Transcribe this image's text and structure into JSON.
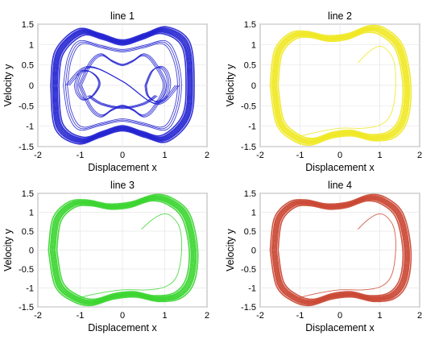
{
  "chart_data": [
    {
      "type": "line",
      "title": "line 1",
      "xlabel": "Displacement x",
      "ylabel": "Velocity y",
      "xlim": [
        -2,
        2
      ],
      "ylim": [
        -1.5,
        1.5
      ],
      "xticks": [
        "-2",
        "-1",
        "0",
        "1",
        "2"
      ],
      "yticks": [
        "-1.5",
        "-1",
        "-0.5",
        "0",
        "0.5",
        "1",
        "1.5"
      ],
      "grid": true,
      "color": "#1f1fd0",
      "series": [
        {
          "x": [
            -1.6,
            -1.5,
            -1.0,
            -0.5,
            0.0,
            0.5,
            1.0,
            1.5,
            1.6,
            1.5,
            1.0,
            0.5,
            0.0,
            -0.5,
            -1.0,
            -1.5,
            -1.6
          ],
          "y": [
            0.0,
            0.8,
            1.3,
            1.2,
            1.05,
            1.2,
            1.35,
            1.0,
            0.0,
            -0.8,
            -1.3,
            -1.2,
            -1.05,
            -1.2,
            -1.35,
            -1.0,
            0.0
          ]
        },
        {
          "x": [
            -1.35,
            -1.25,
            -1.0,
            -0.5,
            0.0,
            0.5,
            1.0,
            1.25,
            1.35,
            1.25,
            1.0,
            0.5,
            0.0,
            -0.5,
            -1.0,
            -1.25,
            -1.35
          ],
          "y": [
            0.0,
            0.65,
            1.05,
            0.95,
            0.85,
            0.95,
            1.05,
            0.65,
            0.0,
            -0.65,
            -1.05,
            -0.95,
            -0.85,
            -0.95,
            -1.05,
            -0.65,
            0.0
          ]
        },
        {
          "x": [
            -1.0,
            -0.75,
            -0.5,
            -0.25,
            0.0,
            0.25,
            0.5,
            0.75,
            1.0,
            0.75,
            0.5,
            0.25,
            0.0,
            -0.25,
            -0.5,
            -0.75,
            -1.0
          ],
          "y": [
            0.0,
            0.55,
            0.75,
            0.6,
            0.5,
            0.6,
            0.75,
            0.55,
            0.0,
            -0.55,
            -0.75,
            -0.6,
            -0.5,
            -0.6,
            -0.75,
            -0.55,
            0.0
          ]
        },
        {
          "x": [
            -1.1,
            -1.0,
            -0.8,
            -0.6,
            -0.55,
            -0.7,
            -0.9,
            -1.05,
            -1.1
          ],
          "y": [
            0.0,
            0.3,
            0.35,
            0.2,
            0.0,
            -0.25,
            -0.35,
            -0.2,
            0.0
          ]
        },
        {
          "x": [
            0.55,
            0.7,
            0.9,
            1.05,
            1.1,
            1.0,
            0.8,
            0.6,
            0.55
          ],
          "y": [
            0.0,
            0.35,
            0.45,
            0.3,
            0.0,
            -0.3,
            -0.4,
            -0.25,
            0.0
          ]
        },
        {
          "x": [
            -0.8,
            -0.5,
            0.0,
            0.5,
            0.8
          ],
          "y": [
            -0.25,
            -0.45,
            -0.55,
            -0.45,
            -0.25
          ]
        },
        {
          "x": [
            -1.3,
            -0.8,
            0.0,
            0.8,
            1.3
          ],
          "y": [
            0.0,
            0.45,
            0.1,
            -0.45,
            0.0
          ]
        }
      ]
    },
    {
      "type": "line",
      "title": "line 2",
      "xlabel": "Displacement x",
      "ylabel": "Velocity y",
      "xlim": [
        -2,
        2
      ],
      "ylim": [
        -1.5,
        1.5
      ],
      "xticks": [
        "-2",
        "-1",
        "0",
        "1",
        "2"
      ],
      "yticks": [
        "-1.5",
        "-1",
        "-0.5",
        "0",
        "0.5",
        "1",
        "1.5"
      ],
      "grid": true,
      "color": "#f0e81e",
      "series": [
        {
          "x": [
            -1.65,
            -1.55,
            -1.2,
            -0.8,
            -0.3,
            0.2,
            0.7,
            1.1,
            1.5,
            1.68,
            1.6,
            1.3,
            0.8,
            0.3,
            -0.2,
            -0.7,
            -1.1,
            -1.5,
            -1.65
          ],
          "y": [
            0.0,
            0.8,
            1.2,
            1.25,
            1.15,
            1.2,
            1.38,
            1.3,
            0.9,
            0.0,
            -0.8,
            -1.2,
            -1.28,
            -1.17,
            -1.22,
            -1.38,
            -1.28,
            -0.9,
            0.0
          ]
        },
        {
          "x": [
            0.45,
            0.7,
            0.95,
            1.15,
            1.35,
            1.4,
            1.3,
            1.05,
            0.6,
            0.0,
            -0.6,
            -1.0
          ],
          "y": [
            0.55,
            0.8,
            0.95,
            0.9,
            0.6,
            0.0,
            -0.65,
            -0.95,
            -1.05,
            -1.05,
            -1.15,
            -1.25
          ]
        }
      ]
    },
    {
      "type": "line",
      "title": "line 3",
      "xlabel": "Displacement x",
      "ylabel": "Velocity y",
      "xlim": [
        -2,
        2
      ],
      "ylim": [
        -1.5,
        1.5
      ],
      "xticks": [
        "-2",
        "-1",
        "0",
        "1",
        "2"
      ],
      "yticks": [
        "-1.5",
        "-1",
        "-0.5",
        "0",
        "0.5",
        "1",
        "1.5"
      ],
      "grid": true,
      "color": "#35d42a",
      "series": [
        {
          "x": [
            -1.65,
            -1.55,
            -1.2,
            -0.8,
            -0.3,
            0.2,
            0.7,
            1.1,
            1.5,
            1.68,
            1.6,
            1.3,
            0.8,
            0.3,
            -0.2,
            -0.7,
            -1.1,
            -1.5,
            -1.65
          ],
          "y": [
            0.0,
            0.8,
            1.2,
            1.25,
            1.15,
            1.2,
            1.38,
            1.3,
            0.9,
            0.0,
            -0.8,
            -1.2,
            -1.28,
            -1.17,
            -1.22,
            -1.38,
            -1.28,
            -0.9,
            0.0
          ]
        },
        {
          "x": [
            0.45,
            0.7,
            0.95,
            1.15,
            1.35,
            1.4,
            1.3,
            1.05,
            0.6,
            0.0,
            -0.6,
            -1.0
          ],
          "y": [
            0.55,
            0.8,
            0.95,
            0.9,
            0.6,
            0.0,
            -0.65,
            -0.95,
            -1.05,
            -1.05,
            -1.15,
            -1.25
          ]
        }
      ]
    },
    {
      "type": "line",
      "title": "line 4",
      "xlabel": "Displacement x",
      "ylabel": "Velocity y",
      "xlim": [
        -2,
        2
      ],
      "ylim": [
        -1.5,
        1.5
      ],
      "xticks": [
        "-2",
        "-1",
        "0",
        "1",
        "2"
      ],
      "yticks": [
        "-1.5",
        "-1",
        "-0.5",
        "0",
        "0.5",
        "1",
        "1.5"
      ],
      "grid": true,
      "color": "#c9422f",
      "series": [
        {
          "x": [
            -1.65,
            -1.55,
            -1.2,
            -0.8,
            -0.3,
            0.2,
            0.7,
            1.1,
            1.5,
            1.68,
            1.6,
            1.3,
            0.8,
            0.3,
            -0.2,
            -0.7,
            -1.1,
            -1.5,
            -1.65
          ],
          "y": [
            0.0,
            0.8,
            1.2,
            1.25,
            1.15,
            1.2,
            1.38,
            1.3,
            0.9,
            0.0,
            -0.8,
            -1.2,
            -1.28,
            -1.17,
            -1.22,
            -1.38,
            -1.28,
            -0.9,
            0.0
          ]
        },
        {
          "x": [
            0.45,
            0.7,
            0.95,
            1.15,
            1.35,
            1.4,
            1.3,
            1.05,
            0.6,
            0.0,
            -0.6,
            -1.0
          ],
          "y": [
            0.55,
            0.8,
            0.95,
            0.9,
            0.6,
            0.0,
            -0.65,
            -0.95,
            -1.05,
            -1.05,
            -1.15,
            -1.25
          ]
        }
      ]
    }
  ]
}
